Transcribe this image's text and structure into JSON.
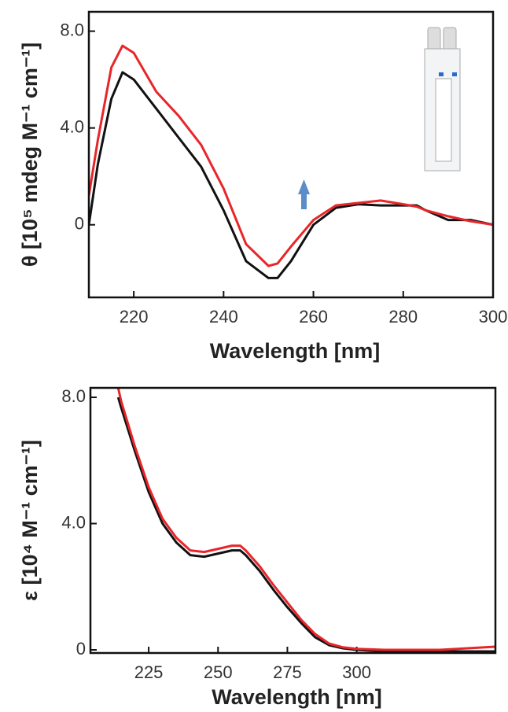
{
  "chart_data": [
    {
      "type": "line",
      "x_label": "Wavelength [nm]",
      "y_label": "θ [10⁵ mdeg M⁻¹ cm⁻¹]",
      "x": [
        210,
        212,
        215,
        217.5,
        220,
        225,
        230,
        235,
        240,
        245,
        250,
        252,
        255,
        260,
        265,
        270,
        275,
        280,
        283,
        285,
        290,
        295,
        300
      ],
      "series": [
        {
          "color": "#111111",
          "values": [
            0,
            2.5,
            5.2,
            6.3,
            6.0,
            4.8,
            3.6,
            2.4,
            0.6,
            -1.5,
            -2.2,
            -2.2,
            -1.5,
            0.0,
            0.7,
            0.85,
            0.8,
            0.8,
            0.8,
            0.6,
            0.2,
            0.2,
            0.0
          ]
        },
        {
          "color": "#e8262a",
          "values": [
            1.2,
            3.5,
            6.5,
            7.4,
            7.1,
            5.5,
            4.5,
            3.3,
            1.5,
            -0.8,
            -1.7,
            -1.6,
            -0.9,
            0.2,
            0.8,
            0.9,
            1.0,
            0.85,
            0.75,
            0.6,
            0.35,
            0.15,
            0.0
          ]
        }
      ],
      "xlim": [
        210,
        300
      ],
      "xticks": [
        220,
        240,
        260,
        280,
        300
      ],
      "ylim": [
        -3,
        8.8
      ],
      "yticks": [
        {
          "value": 8,
          "label": "8.0"
        },
        {
          "value": 4,
          "label": "4.0"
        },
        0
      ]
    },
    {
      "type": "line",
      "x_label": "Wavelength [nm]",
      "y_label": "ε [10⁴ M⁻¹ cm⁻¹]",
      "x": [
        214,
        215,
        220,
        225,
        230,
        235,
        240,
        245,
        250,
        255,
        258,
        260,
        265,
        270,
        275,
        280,
        285,
        290,
        295,
        300,
        310,
        320,
        330,
        340,
        350
      ],
      "series": [
        {
          "color": "#111111",
          "values": [
            8.0,
            7.7,
            6.3,
            5.0,
            4.0,
            3.4,
            3.0,
            2.95,
            3.05,
            3.15,
            3.15,
            3.0,
            2.5,
            1.9,
            1.35,
            0.85,
            0.4,
            0.15,
            0.05,
            0.0,
            -0.05,
            -0.05,
            -0.05,
            -0.05,
            -0.05
          ]
        },
        {
          "color": "#e8262a",
          "values": [
            8.3,
            7.9,
            6.45,
            5.15,
            4.15,
            3.55,
            3.15,
            3.1,
            3.2,
            3.3,
            3.3,
            3.15,
            2.65,
            2.05,
            1.5,
            0.95,
            0.5,
            0.2,
            0.08,
            0.03,
            0.0,
            0.0,
            0.0,
            0.05,
            0.1
          ]
        }
      ],
      "xlim": [
        204,
        350
      ],
      "xticks": [
        225,
        250,
        275,
        300
      ],
      "ylim": [
        -0.1,
        8.3
      ],
      "yticks": [
        {
          "value": 8,
          "label": "8.0"
        },
        {
          "value": 4,
          "label": "4.0"
        },
        0
      ]
    }
  ]
}
